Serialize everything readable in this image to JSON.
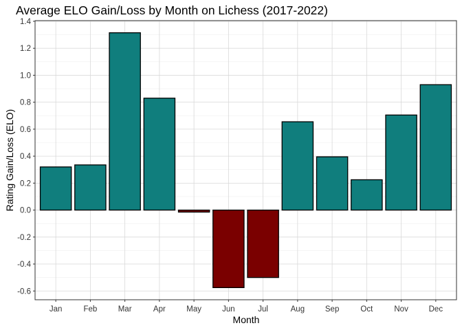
{
  "chart_data": {
    "type": "bar",
    "title": "Average ELO Gain/Loss by Month on Lichess (2017-2022)",
    "xlabel": "Month",
    "ylabel": "Rating Gain/Loss (ELO)",
    "categories": [
      "Jan",
      "Feb",
      "Mar",
      "Apr",
      "May",
      "Jun",
      "Jul",
      "Aug",
      "Sep",
      "Oct",
      "Nov",
      "Dec"
    ],
    "values": [
      0.32,
      0.335,
      1.315,
      0.83,
      -0.015,
      -0.575,
      -0.5,
      0.655,
      0.395,
      0.225,
      0.705,
      0.93
    ],
    "ylim": [
      -0.665,
      1.405
    ],
    "yticks": [
      -0.6,
      -0.4,
      -0.2,
      0.0,
      0.2,
      0.4,
      0.6,
      0.8,
      1.0,
      1.2,
      1.4
    ],
    "ytick_labels": [
      "-0.6",
      "-0.4",
      "-0.2",
      "0.0",
      "0.2",
      "0.4",
      "0.6",
      "0.8",
      "1.0",
      "1.2",
      "1.4"
    ],
    "grid": true,
    "legend": "none",
    "colors": {
      "positive": "#107e7d",
      "negative": "#7a0000",
      "bar_stroke": "#000000",
      "grid_major": "#d9d9d9",
      "grid_minor": "#efefef",
      "panel_border": "#333333"
    }
  }
}
